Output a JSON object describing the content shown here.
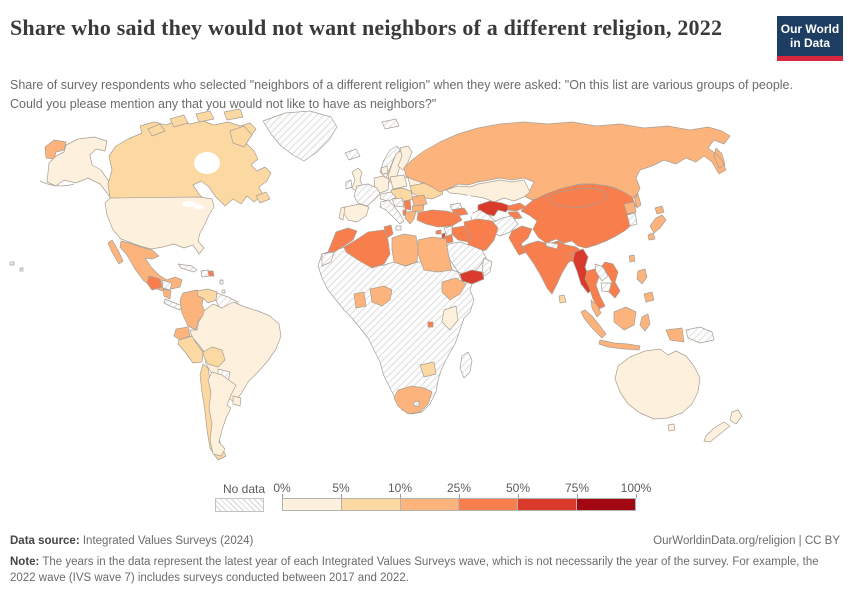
{
  "header": {
    "title": "Share who said they would not want neighbors of a different religion, 2022",
    "subtitle": "Share of survey respondents who selected \"neighbors of a different religion\" when they were asked: \"On this list are various groups of people. Could you please mention any that you would not like to have as neighbors?\"",
    "logo": {
      "line1": "Our World",
      "line2": "in Data"
    }
  },
  "legend": {
    "no_data_label": "No data",
    "tick_labels": [
      "0%",
      "5%",
      "10%",
      "25%",
      "50%",
      "75%",
      "100%"
    ],
    "bin_colors": [
      "#fdf0dc",
      "#fcd9a2",
      "#fcb47c",
      "#f97e4e",
      "#d93a2b",
      "#a30712"
    ]
  },
  "chart_data": {
    "type": "heatmap",
    "title": "Share who said they would not want neighbors of a different religion, 2022",
    "unit": "%",
    "bins": [
      "0-5%",
      "5-10%",
      "10-25%",
      "25-50%",
      "50-75%",
      "75-100%",
      "no-data"
    ],
    "bin_colors": {
      "0-5%": "#fdf0dc",
      "5-10%": "#fcd9a2",
      "10-25%": "#fcb47c",
      "25-50%": "#f97e4e",
      "50-75%": "#d93a2b",
      "75-100%": "#a30712",
      "no-data": "hatch"
    }
  },
  "map": {
    "water_color": "#ffffff",
    "border_color": "#a89f94",
    "regions": {
      "russia-chukotka": "10-25%",
      "alaska": "0-5%",
      "canada": "5-10%",
      "arctic-island-1": "5-10%",
      "arctic-island-2": "5-10%",
      "arctic-island-3": "5-10%",
      "arctic-island-4": "5-10%",
      "baffin-island": "5-10%",
      "newfoundland": "5-10%",
      "greenland": "no-data",
      "iceland": "no-data",
      "svalbard": "no-data",
      "united-states": "0-5%",
      "hawaii-1": "no-data",
      "hawaii-2": "no-data",
      "mexico": "10-25%",
      "baja-california": "10-25%",
      "guatemala": "25-50%",
      "honduras": "no-data",
      "nicaragua": "10-25%",
      "costa-rica-panama": "no-data",
      "cuba": "no-data",
      "hispaniola": "no-data",
      "dominican-republic": "25-50%",
      "lesser-antilles": "no-data",
      "colombia": "10-25%",
      "venezuela": "5-10%",
      "guyana-suriname": "no-data",
      "ecuador": "10-25%",
      "peru": "5-10%",
      "brazil": "0-5%",
      "bolivia": "5-10%",
      "paraguay": "no-data",
      "chile": "5-10%",
      "argentina": "0-5%",
      "uruguay": "0-5%",
      "united-kingdom": "0-5%",
      "ireland": "no-data",
      "norway": "no-data",
      "sweden": "0-5%",
      "finland": "0-5%",
      "denmark": "0-5%",
      "baltics": "5-10%",
      "germany": "0-5%",
      "france": "no-data",
      "spain": "0-5%",
      "portugal": "0-5%",
      "italy": "no-data",
      "sicily": "no-data",
      "austria-switzerland": "no-data",
      "poland": "0-5%",
      "czech-slovakia-hungary": "5-10%",
      "belarus": "0-5%",
      "ukraine": "5-10%",
      "romania": "10-25%",
      "serbia": "25-50%",
      "bosnia-croatia": "no-data",
      "bulgaria": "10-25%",
      "albania": "25-50%",
      "greece": "10-25%",
      "russia": "10-25%",
      "kazakhstan": "0-5%",
      "uzbekistan": "50-75%",
      "turkmenistan": "no-data",
      "kyrgyzstan": "25-50%",
      "tajikistan": "25-50%",
      "afghanistan": "no-data",
      "georgia": "no-data",
      "armenia-azerbaijan": "25-50%",
      "turkey": "25-50%",
      "cyprus": "25-50%",
      "syria": "no-data",
      "lebanon": "50-75%",
      "israel": "no-data",
      "jordan": "25-50%",
      "iraq": "25-50%",
      "iran": "25-50%",
      "saudi-arabia": "no-data",
      "yemen": "50-75%",
      "oman": "no-data",
      "morocco": "25-50%",
      "western-sahara": "no-data",
      "algeria": "25-50%",
      "tunisia": "25-50%",
      "libya": "10-25%",
      "egypt": "10-25%",
      "africa-interior": "no-data",
      "ghana": "10-25%",
      "nigeria": "10-25%",
      "ethiopia": "10-25%",
      "kenya": "0-5%",
      "rwanda": "25-50%",
      "zimbabwe": "5-10%",
      "south-africa": "10-25%",
      "lesotho": "no-data",
      "madagascar": "no-data",
      "pakistan": "25-50%",
      "india": "25-50%",
      "nepal": "no-data",
      "bangladesh": "25-50%",
      "sri-lanka": "5-10%",
      "china": "25-50%",
      "mongolia": "25-50%",
      "north-korea": "10-25%",
      "south-korea": "no-data",
      "japan-hokkaido": "10-25%",
      "japan-honshu": "10-25%",
      "japan-kyushu": "10-25%",
      "taiwan": "10-25%",
      "myanmar": "50-75%",
      "thailand": "25-50%",
      "laos": "no-data",
      "cambodia": "no-data",
      "vietnam": "25-50%",
      "malaysia": "10-25%",
      "indonesia-sumatra": "10-25%",
      "indonesia-java": "10-25%",
      "indonesia-borneo": "10-25%",
      "indonesia-sulawesi": "10-25%",
      "indonesia-papua": "10-25%",
      "papua-new-guinea": "no-data",
      "philippines-luzon": "10-25%",
      "philippines-mindanao": "10-25%",
      "australia": "0-5%",
      "tasmania": "0-5%",
      "new-zealand-north": "0-5%",
      "new-zealand-south": "0-5%"
    }
  },
  "footer": {
    "datasource_label": "Data source:",
    "datasource_value": " Integrated Values Surveys (2024)",
    "link": "OurWorldinData.org/religion | CC BY",
    "note_label": "Note:",
    "note_value": " The years in the data represent the latest year of each Integrated Values Surveys wave, which is not necessarily the year of the survey. For example, the 2022 wave (IVS wave 7) includes surveys conducted between 2017 and 2022."
  }
}
